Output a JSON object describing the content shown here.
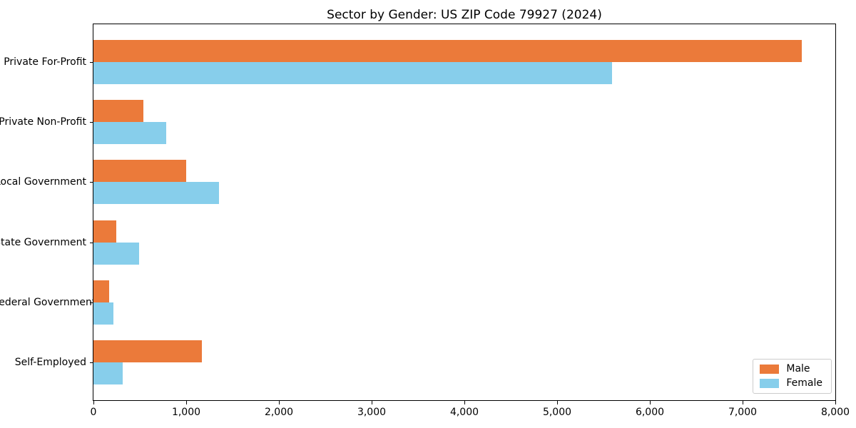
{
  "chart_data": {
    "type": "bar",
    "orientation": "horizontal",
    "title": "Sector by Gender: US ZIP Code 79927 (2024)",
    "categories": [
      "Private For-Profit",
      "Private Non-Profit",
      "Local Government",
      "State Government",
      "Federal Government",
      "Self-Employed"
    ],
    "series": [
      {
        "name": "Male",
        "color": "#EB7A3A",
        "values": [
          7640,
          535,
          1000,
          245,
          170,
          1170
        ]
      },
      {
        "name": "Female",
        "color": "#87CEEB",
        "values": [
          5590,
          785,
          1350,
          490,
          215,
          315
        ]
      }
    ],
    "xlabel": "",
    "ylabel": "",
    "xlim": [
      0,
      8000
    ],
    "xticks": [
      0,
      1000,
      2000,
      3000,
      4000,
      5000,
      6000,
      7000,
      8000
    ],
    "xtick_labels": [
      "0",
      "1,000",
      "2,000",
      "3,000",
      "4,000",
      "5,000",
      "6,000",
      "7,000",
      "8,000"
    ],
    "grid": false,
    "frame": "full-box",
    "legend_position": "lower right"
  }
}
